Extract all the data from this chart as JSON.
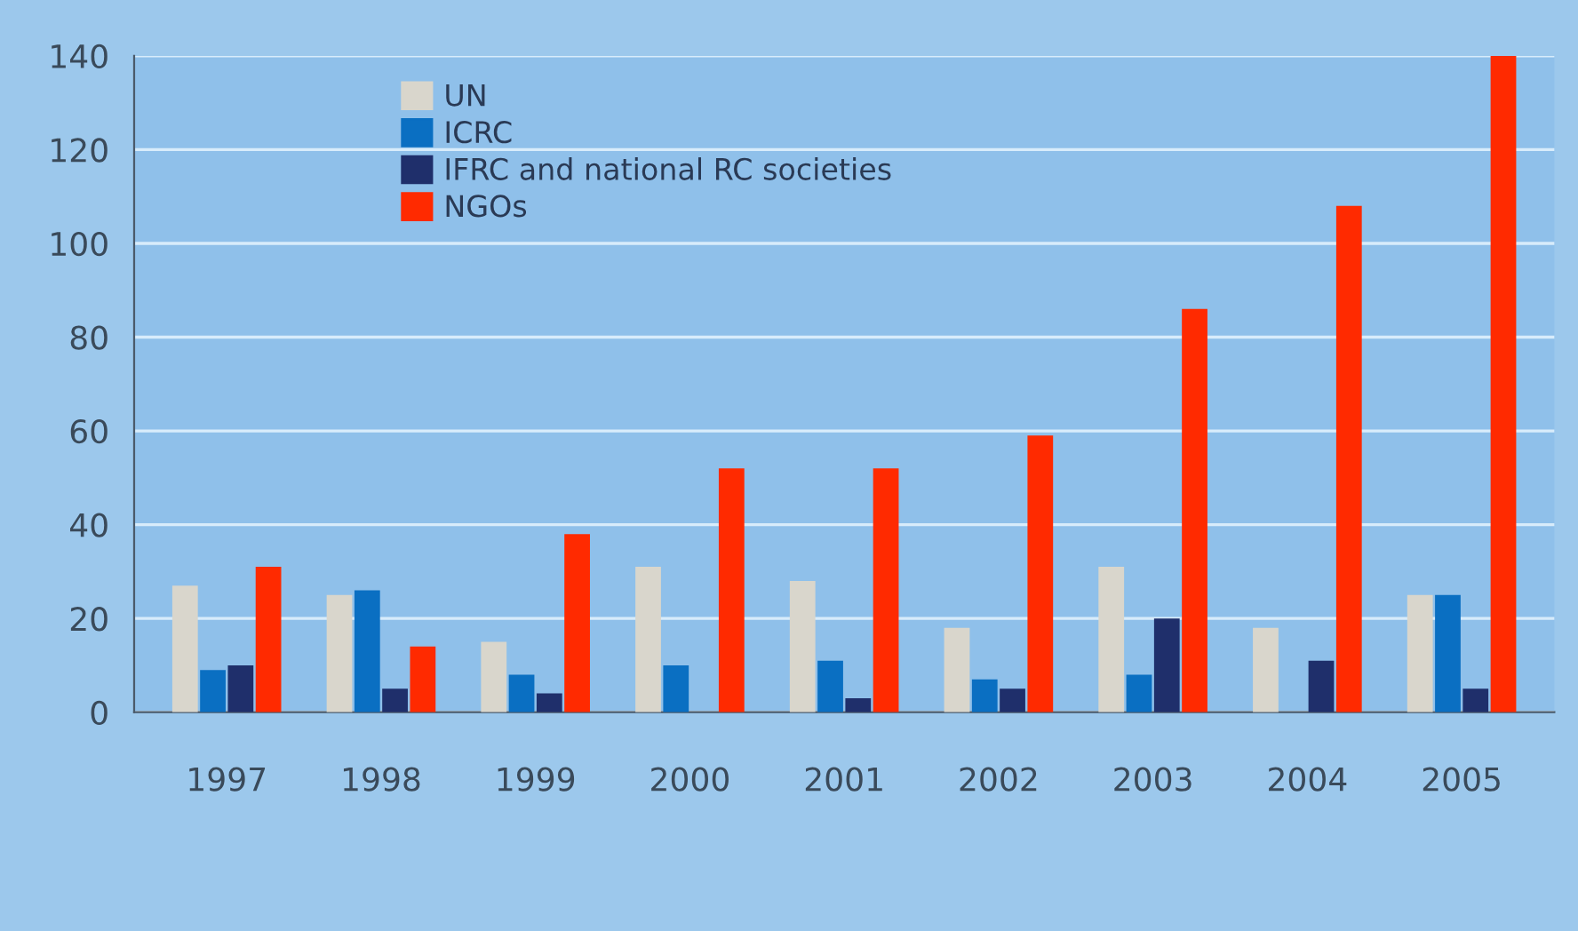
{
  "chart_data": {
    "type": "bar",
    "categories": [
      "1997",
      "1998",
      "1999",
      "2000",
      "2001",
      "2002",
      "2003",
      "2004",
      "2005"
    ],
    "series": [
      {
        "name": "UN",
        "color": "#d9d6cc",
        "values": [
          27,
          25,
          15,
          31,
          28,
          18,
          31,
          18,
          25
        ]
      },
      {
        "name": "ICRC",
        "color": "#0a6fc2",
        "values": [
          9,
          26,
          8,
          10,
          11,
          7,
          8,
          null,
          25
        ]
      },
      {
        "name": "IFRC and national RC societies",
        "color": "#1f2f6b",
        "values": [
          10,
          5,
          4,
          null,
          3,
          5,
          20,
          11,
          5
        ]
      },
      {
        "name": "NGOs",
        "color": "#ff2a00",
        "values": [
          31,
          14,
          38,
          52,
          52,
          59,
          86,
          108,
          140
        ]
      }
    ],
    "ylim": [
      0,
      140
    ],
    "yticks": [
      0,
      20,
      40,
      60,
      80,
      100,
      120,
      140
    ],
    "grid": "y",
    "legend": "top left"
  }
}
